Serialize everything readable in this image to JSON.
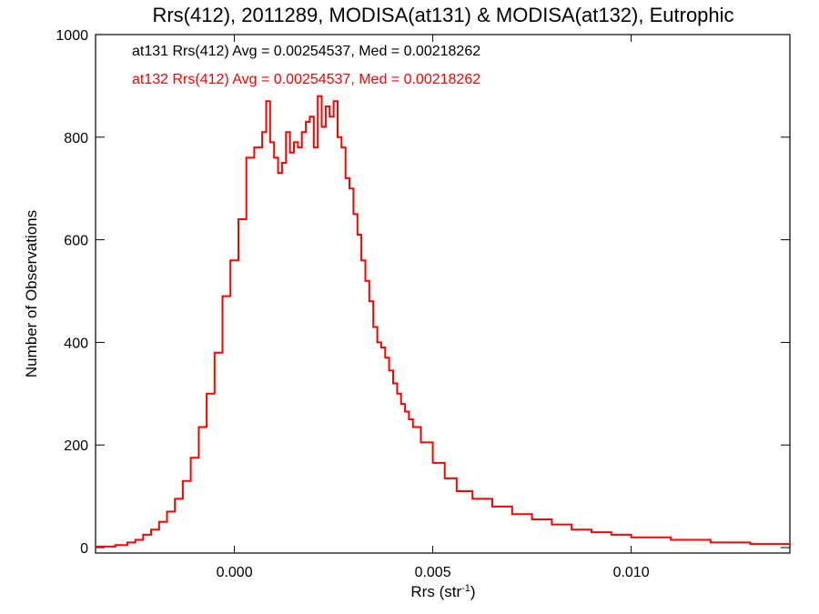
{
  "chart_data": {
    "type": "line",
    "title": "Rrs(412), 2011289, MODISA(at131) & MODISA(at132), Eutrophic",
    "xlabel": "Rrs (str",
    "xlabel_sup": "-1",
    "xlabel_close": ")",
    "ylabel": "Number of Observations",
    "xlim": [
      -0.0035,
      0.014
    ],
    "ylim": [
      0,
      1000
    ],
    "x_ticks": [
      {
        "value": 0.0,
        "label": "0.000"
      },
      {
        "value": 0.005,
        "label": "0.005"
      },
      {
        "value": 0.01,
        "label": "0.010"
      }
    ],
    "y_ticks": [
      {
        "value": 0,
        "label": "0"
      },
      {
        "value": 200,
        "label": "200"
      },
      {
        "value": 400,
        "label": "400"
      },
      {
        "value": 600,
        "label": "600"
      },
      {
        "value": 800,
        "label": "800"
      },
      {
        "value": 1000,
        "label": "1000"
      }
    ],
    "grid": false,
    "legend": "none",
    "annotations": [
      {
        "text": "at131 Rrs(412) Avg = 0.00254537, Med = 0.00218262",
        "color": "#000000"
      },
      {
        "text": "at132 Rrs(412) Avg = 0.00254537, Med = 0.00218262",
        "color": "#ff0000"
      }
    ],
    "series": [
      {
        "color": "#ff0000",
        "x": [
          -0.0035,
          -0.003,
          -0.0027,
          -0.0025,
          -0.0023,
          -0.0021,
          -0.0019,
          -0.0017,
          -0.0015,
          -0.0013,
          -0.0011,
          -0.0009,
          -0.0007,
          -0.0005,
          -0.0003,
          -0.0001,
          0.0001,
          0.0003,
          0.0005,
          0.0007,
          0.0008,
          0.0009,
          0.001,
          0.0011,
          0.0012,
          0.0013,
          0.0014,
          0.0015,
          0.0016,
          0.0017,
          0.0018,
          0.0019,
          0.002,
          0.0021,
          0.0022,
          0.0023,
          0.0024,
          0.0025,
          0.0026,
          0.0027,
          0.0028,
          0.0029,
          0.003,
          0.0031,
          0.0032,
          0.0033,
          0.0034,
          0.0035,
          0.0036,
          0.0037,
          0.0038,
          0.0039,
          0.004,
          0.0041,
          0.0042,
          0.0043,
          0.0044,
          0.0045,
          0.0047,
          0.005,
          0.0053,
          0.0056,
          0.006,
          0.0065,
          0.007,
          0.0075,
          0.008,
          0.0085,
          0.009,
          0.0095,
          0.01,
          0.011,
          0.012,
          0.013,
          0.014
        ],
        "values": [
          2,
          5,
          10,
          15,
          25,
          35,
          50,
          70,
          95,
          130,
          175,
          235,
          300,
          380,
          490,
          560,
          640,
          760,
          780,
          810,
          870,
          790,
          760,
          730,
          750,
          810,
          770,
          790,
          780,
          810,
          830,
          840,
          780,
          880,
          820,
          860,
          840,
          870,
          800,
          780,
          720,
          700,
          650,
          610,
          560,
          520,
          480,
          430,
          400,
          390,
          370,
          345,
          320,
          300,
          280,
          265,
          250,
          235,
          205,
          165,
          135,
          110,
          95,
          80,
          65,
          55,
          45,
          35,
          30,
          25,
          20,
          15,
          10,
          7,
          5
        ]
      }
    ]
  }
}
